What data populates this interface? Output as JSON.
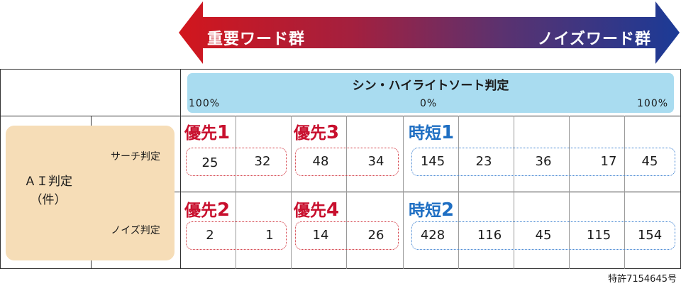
{
  "arrow": {
    "left_label": "重要ワード群",
    "right_label": "ノイズワード群",
    "colors": {
      "left": "#c8102e",
      "right": "#1f3a8c"
    }
  },
  "header": {
    "bar_title": "シン・ハイライトソート判定",
    "scale": {
      "left": "100%",
      "center": "0%",
      "right": "100%"
    }
  },
  "ai_label": {
    "line1": "ＡＩ判定",
    "line2": "（件）"
  },
  "rows": [
    {
      "label": "サーチ判定",
      "groups": [
        {
          "prefix": "優先",
          "num": "1",
          "color": "red",
          "values": [
            "25",
            "32"
          ]
        },
        {
          "prefix": "優先",
          "num": "3",
          "color": "red",
          "values": [
            "48",
            "34"
          ]
        },
        {
          "prefix": "時短",
          "num": "1",
          "color": "blue",
          "values": [
            "145",
            "23",
            "36",
            "17",
            "45"
          ]
        }
      ]
    },
    {
      "label": "ノイズ判定",
      "groups": [
        {
          "prefix": "優先",
          "num": "2",
          "color": "red",
          "values": [
            "2",
            "1"
          ]
        },
        {
          "prefix": "優先",
          "num": "4",
          "color": "red",
          "values": [
            "14",
            "26"
          ]
        },
        {
          "prefix": "時短",
          "num": "2",
          "color": "blue",
          "values": [
            "428",
            "116",
            "45",
            "115",
            "154"
          ]
        }
      ]
    }
  ],
  "patent": "特許7154645号"
}
